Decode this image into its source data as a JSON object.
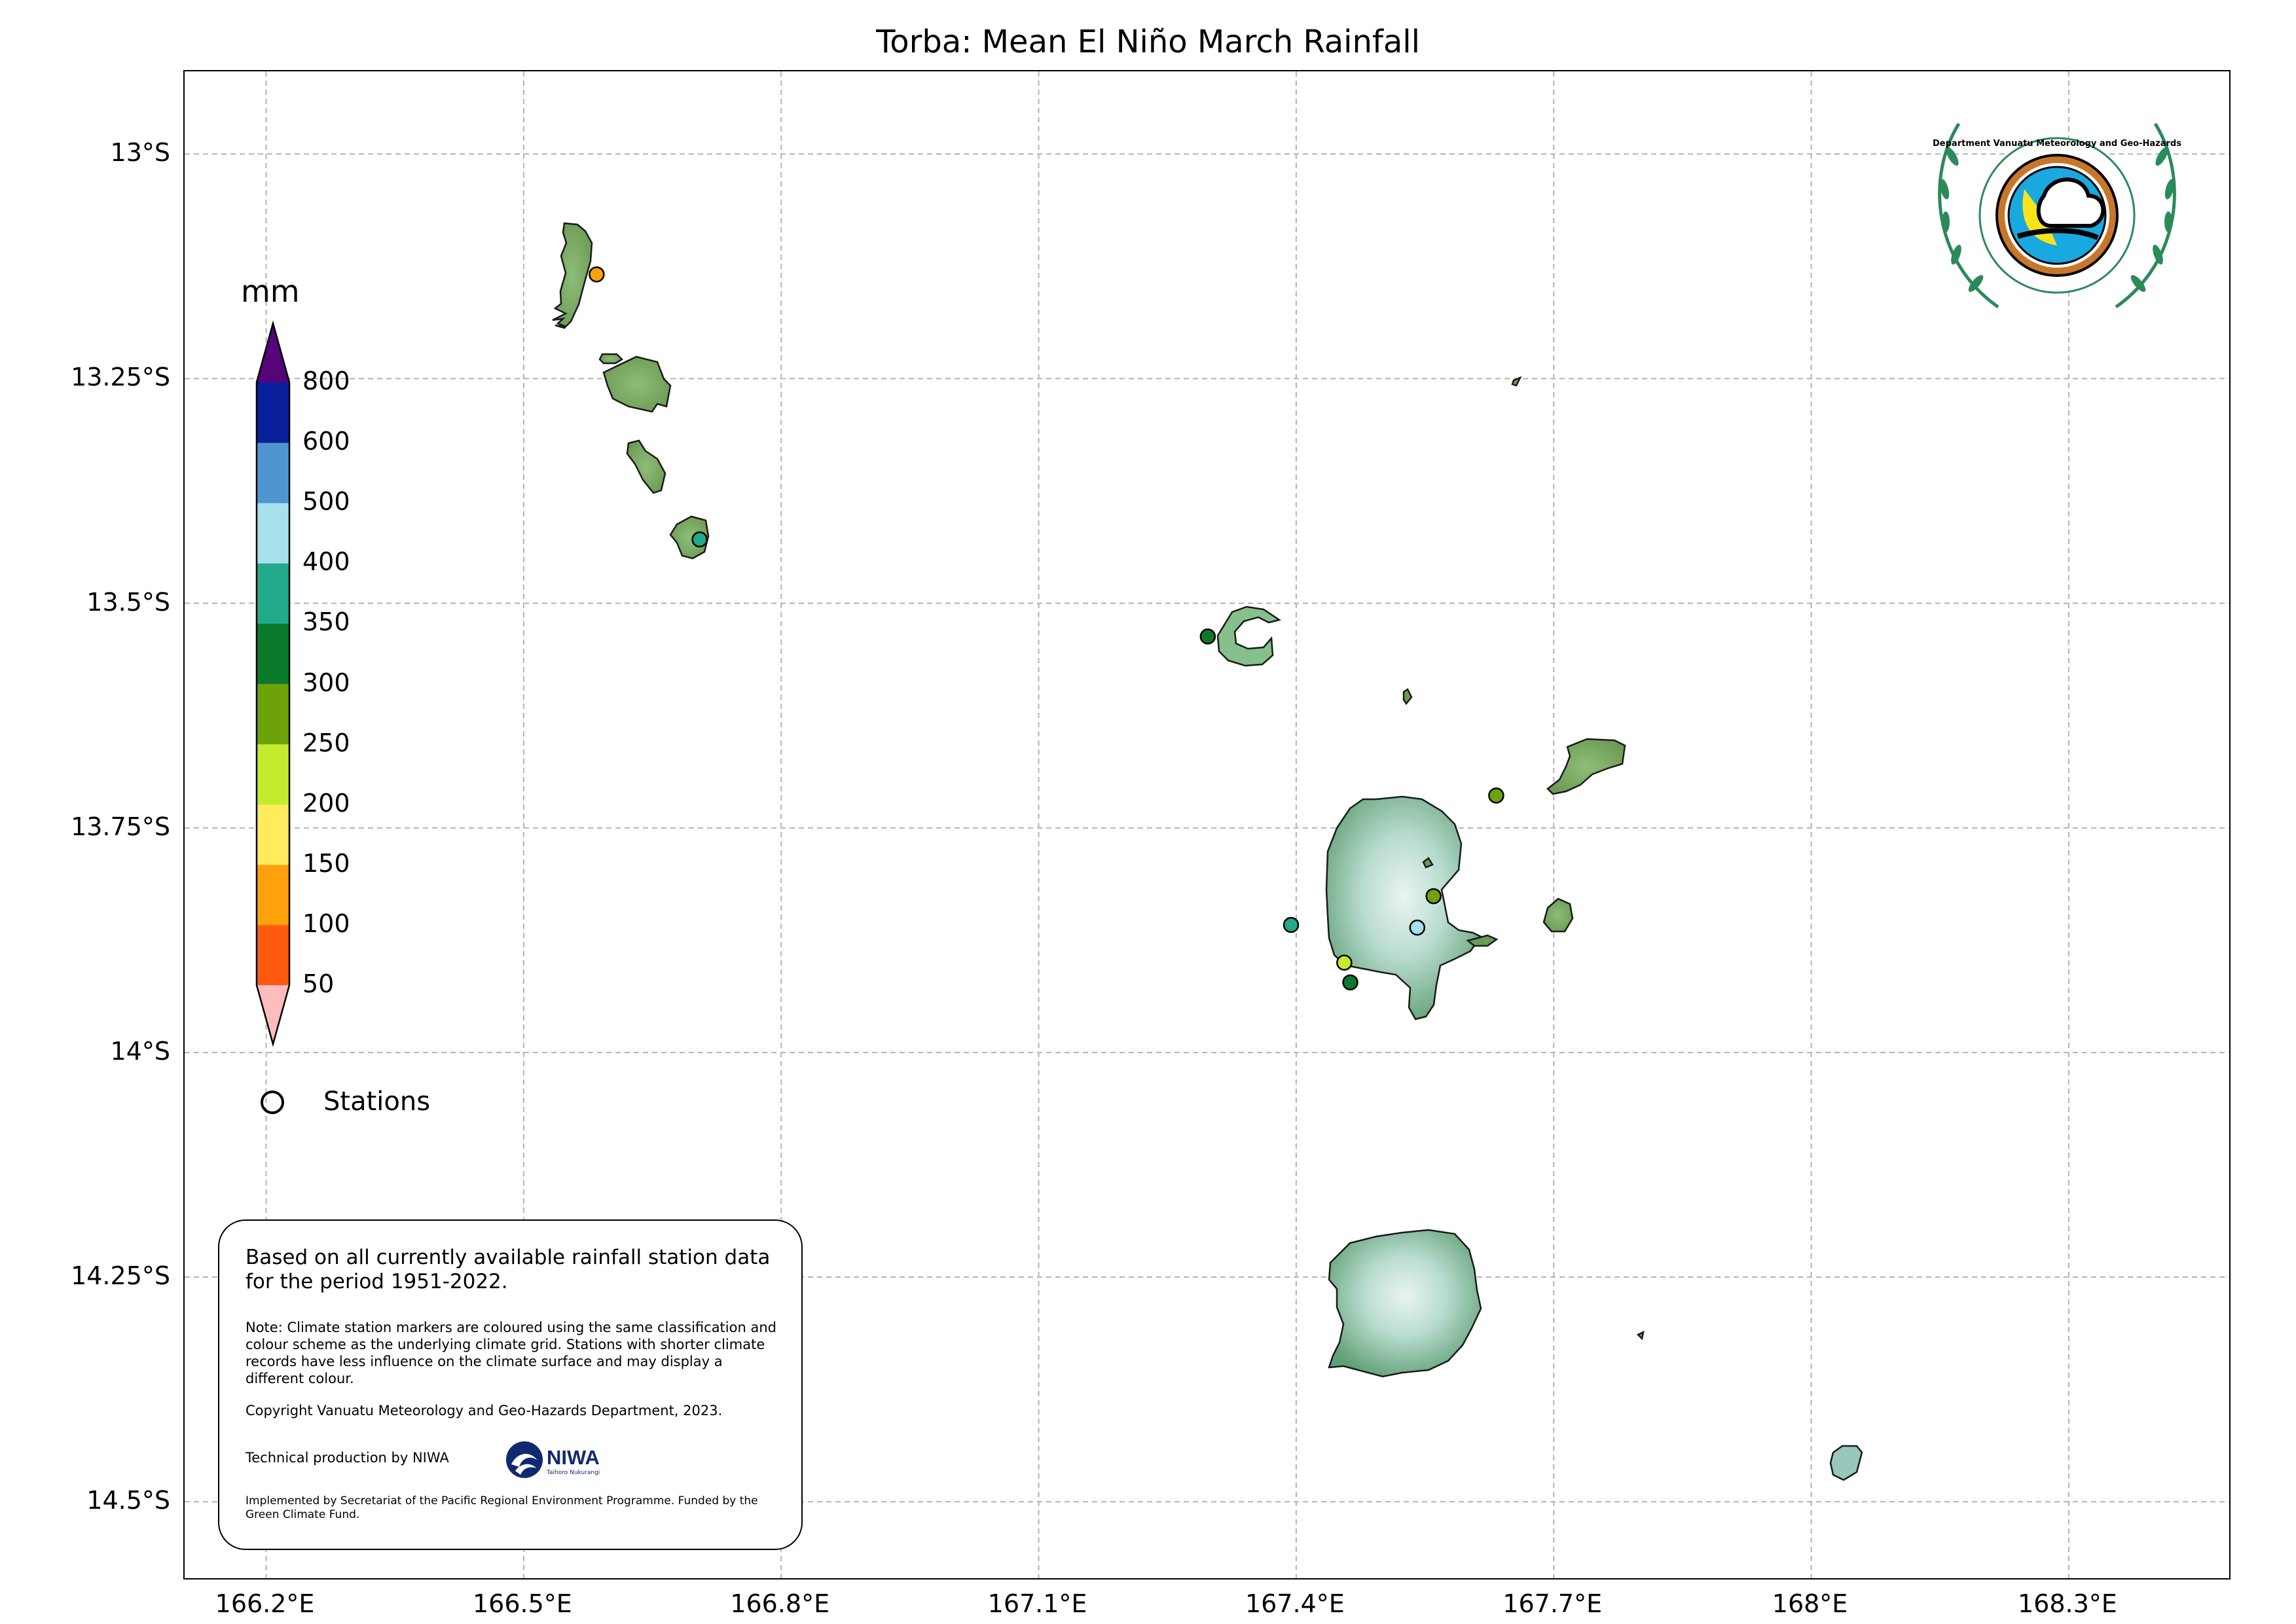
{
  "title": "Torba: Mean El Niño March Rainfall",
  "axes": {
    "lat_labels": [
      "13°S",
      "13.25°S",
      "13.5°S",
      "13.75°S",
      "14°S",
      "14.25°S",
      "14.5°S"
    ],
    "lon_labels": [
      "166.2°E",
      "166.5°E",
      "166.8°E",
      "167.1°E",
      "167.4°E",
      "167.7°E",
      "168°E",
      "168.3°E"
    ],
    "lat_values": [
      -13.0,
      -13.25,
      -13.5,
      -13.75,
      -14.0,
      -14.25,
      -14.5
    ],
    "lon_values": [
      166.2,
      166.5,
      166.8,
      167.1,
      167.4,
      167.7,
      168.0,
      168.3
    ],
    "lon_range": [
      166.105,
      168.49
    ],
    "lat_range": [
      -12.908,
      -14.588
    ],
    "grid": true
  },
  "colorbar": {
    "unit": "mm",
    "ticks": [
      "50",
      "100",
      "150",
      "200",
      "250",
      "300",
      "350",
      "400",
      "500",
      "600",
      "800"
    ],
    "colors": {
      "below": "#ffbcbc",
      "bins": [
        "#ff5a10",
        "#ffa10a",
        "#ffeb5c",
        "#c3ed2c",
        "#6ea20a",
        "#0b7a2b",
        "#22aa8a",
        "#a6e1ec",
        "#4f95d2",
        "#0a1f9a"
      ],
      "above": "#56047a"
    }
  },
  "legend": {
    "stations_label": "Stations"
  },
  "stations": [
    {
      "lon": 166.585,
      "lat": -13.134,
      "color": "#ffa10a"
    },
    {
      "lon": 166.705,
      "lat": -13.429,
      "color": "#22aa8a"
    },
    {
      "lon": 167.297,
      "lat": -13.537,
      "color": "#0b7a2b"
    },
    {
      "lon": 167.394,
      "lat": -13.858,
      "color": "#22aa8a"
    },
    {
      "lon": 167.541,
      "lat": -13.861,
      "color": "#a6e1ec"
    },
    {
      "lon": 167.56,
      "lat": -13.826,
      "color": "#6ea20a"
    },
    {
      "lon": 167.456,
      "lat": -13.9,
      "color": "#c3ed2c"
    },
    {
      "lon": 167.463,
      "lat": -13.922,
      "color": "#0b7a2b"
    },
    {
      "lon": 167.633,
      "lat": -13.714,
      "color": "#6ea20a"
    }
  ],
  "info": {
    "main": "Based on all currently available rainfall station data for the period 1951-2022.",
    "note": "Note: Climate station markers are coloured using the same classification and colour scheme as the underlying climate grid. Stations with shorter climate records have less influence on the climate surface and may display a different colour.",
    "copyright": "Copyright Vanuatu Meteorology and Geo-Hazards Department, 2023.",
    "technical": "Technical production by NIWA",
    "niwa_name": "NIWA",
    "niwa_sub": "Taihoro Nukurangi",
    "implemented": "Implemented by Secretariat of the Pacific Regional Environment Programme. Funded by the Green Climate Fund."
  },
  "logo": {
    "text": "Department Vanuatu Meteorology and Geo-Hazards"
  },
  "colors": {
    "land": "#6fab6a",
    "land_high": "#cfe8e2",
    "grid": "#b3b3b3"
  }
}
